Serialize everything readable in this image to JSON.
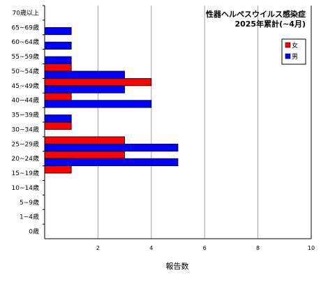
{
  "chart_data": {
    "type": "bar",
    "orientation": "horizontal",
    "title": [
      "性器ヘルペスウイルス感染症",
      "2025年累計(~4月)"
    ],
    "xlabel": "報告数",
    "ylabel": "",
    "xlim": [
      0,
      10
    ],
    "xticks": [
      2,
      4,
      6,
      8,
      10
    ],
    "grid": "vertical",
    "legend_position": "top-right",
    "categories": [
      "70歳以上",
      "65~69歳",
      "60~64歳",
      "55~59歳",
      "50~54歳",
      "45~49歳",
      "40~44歳",
      "35~39歳",
      "30~34歳",
      "25~29歳",
      "20~24歳",
      "15~19歳",
      "10~14歳",
      "5~9歳",
      "1~4歳",
      "0歳"
    ],
    "series": [
      {
        "name": "女",
        "color": "#ff0000",
        "values": [
          0,
          0,
          0,
          0,
          1,
          4,
          1,
          0,
          1,
          3,
          3,
          1,
          0,
          0,
          0,
          0
        ]
      },
      {
        "name": "男",
        "color": "#0000ff",
        "values": [
          0,
          1,
          1,
          1,
          3,
          3,
          4,
          1,
          0,
          5,
          5,
          0,
          0,
          0,
          0,
          0
        ]
      }
    ]
  }
}
